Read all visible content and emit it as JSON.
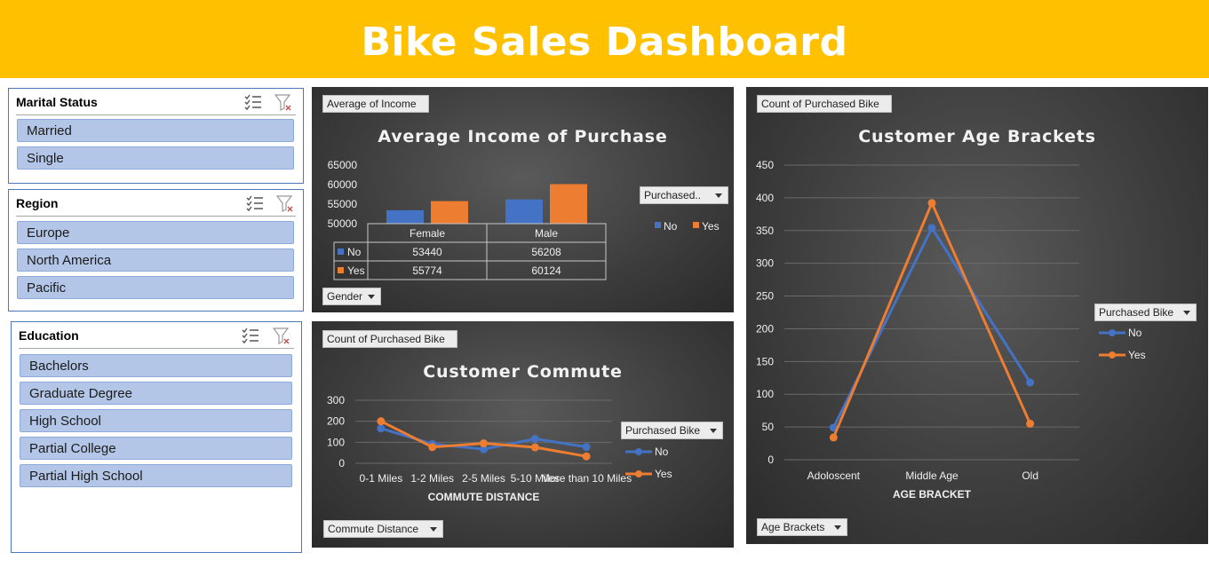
{
  "title": "Bike Sales Dashboard",
  "colors": {
    "banner": "#FFC000",
    "no": "#4472C4",
    "yes": "#ED7D31",
    "slicer_item": "#B4C6E7"
  },
  "slicers": {
    "marital": {
      "title": "Marital Status",
      "items": [
        "Married",
        "Single"
      ]
    },
    "region": {
      "title": "Region",
      "items": [
        "Europe",
        "North America",
        "Pacific"
      ]
    },
    "education": {
      "title": "Education",
      "items": [
        "Bachelors",
        "Graduate Degree",
        "High School",
        "Partial College",
        "Partial High School"
      ]
    }
  },
  "charts": {
    "income": {
      "value_button": "Average of Income",
      "axis_button": "Gender",
      "legend_button": "Purchased..",
      "title": "Average Income of Purchase",
      "legend": [
        "No",
        "Yes"
      ],
      "table": {
        "headers": [
          "Female",
          "Male"
        ],
        "rows": [
          {
            "label": "No",
            "values": [
              "53440",
              "56208"
            ]
          },
          {
            "label": "Yes",
            "values": [
              "55774",
              "60124"
            ]
          }
        ]
      }
    },
    "commute": {
      "value_button": "Count of Purchased Bike",
      "axis_button": "Commute Distance",
      "legend_button": "Purchased Bike",
      "title": "Customer Commute",
      "legend": [
        "No",
        "Yes"
      ]
    },
    "age": {
      "value_button": "Count of Purchased Bike",
      "axis_button": "Age Brackets",
      "legend_button": "Purchased Bike",
      "title": "Customer Age Brackets",
      "legend": [
        "No",
        "Yes"
      ]
    }
  },
  "chart_data": [
    {
      "type": "bar",
      "title": "Average Income of Purchase",
      "categories": [
        "Female",
        "Male"
      ],
      "series": [
        {
          "name": "No",
          "values": [
            53440,
            56208
          ]
        },
        {
          "name": "Yes",
          "values": [
            55774,
            60124
          ]
        }
      ],
      "yticks": [
        "65000",
        "60000",
        "55000",
        "50000"
      ],
      "ylim": [
        50000,
        65000
      ],
      "legend": "right"
    },
    {
      "type": "line",
      "title": "Customer Commute",
      "xlabel": "COMMUTE DISTANCE",
      "categories": [
        "0-1 Miles",
        "1-2 Miles",
        "2-5 Miles",
        "5-10 Miles",
        "More than 10 Miles"
      ],
      "series": [
        {
          "name": "No",
          "values": [
            166,
            92,
            67,
            116,
            78
          ]
        },
        {
          "name": "Yes",
          "values": [
            200,
            77,
            95,
            76,
            33
          ]
        }
      ],
      "yticks": [
        "300",
        "200",
        "100",
        "0"
      ],
      "ylim": [
        0,
        300
      ],
      "legend": "right"
    },
    {
      "type": "line",
      "title": "Customer Age Brackets",
      "xlabel": "AGE BRACKET",
      "categories": [
        "Adoloscent",
        "Middle Age",
        "Old"
      ],
      "series": [
        {
          "name": "No",
          "values": [
            49,
            354,
            118
          ]
        },
        {
          "name": "Yes",
          "values": [
            34,
            392,
            55
          ]
        }
      ],
      "yticks": [
        "450",
        "400",
        "350",
        "300",
        "250",
        "200",
        "150",
        "100",
        "50",
        "0"
      ],
      "ylim": [
        0,
        450
      ],
      "legend": "right"
    }
  ]
}
